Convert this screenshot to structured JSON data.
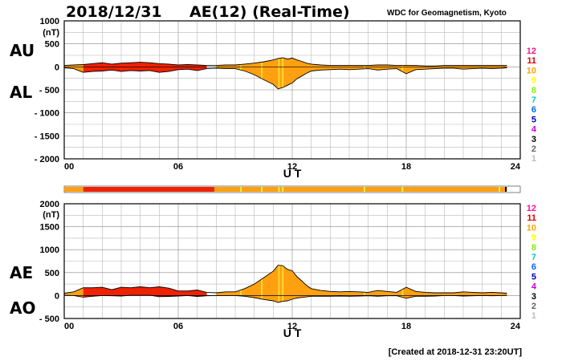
{
  "header": {
    "date": "2018/12/31",
    "title": "AE(12) (Real-Time)",
    "source": "WDC for Geomagnetism, Kyoto"
  },
  "footer": {
    "created": "[Created at 2018-12-31 23:20UT]"
  },
  "panel_labels": {
    "au": "AU",
    "al": "AL",
    "ae": "AE",
    "ao": "AO"
  },
  "station_count_legend": {
    "labels": [
      "12",
      "11",
      "10",
      "9",
      "8",
      "7",
      "6",
      "5",
      "4",
      "3",
      "2",
      "1"
    ],
    "colors": [
      "#ff1493",
      "#dd0000",
      "#ffa500",
      "#ffff00",
      "#88ee00",
      "#00cccc",
      "#0066ff",
      "#0000aa",
      "#cc00cc",
      "#000000",
      "#666666",
      "#bbbbbb"
    ]
  },
  "colors": {
    "station_11": "#ee2200",
    "station_10": "#ffa010",
    "station_9": "#ffee40",
    "frame": "#000000",
    "grid": "#aaaaaa"
  },
  "chart_data": [
    {
      "type": "area",
      "name": "AU / AL",
      "xlabel": "U T",
      "ylabel_unit": "(nT)",
      "xlim": [
        0,
        24
      ],
      "ylim": [
        -2000,
        1000
      ],
      "x_ticks": [
        "00",
        "06",
        "12",
        "18",
        "24"
      ],
      "y_ticks": [
        "1000",
        "500",
        "0",
        "- 500",
        "- 1000",
        "- 1500",
        "- 2000"
      ],
      "x": [
        0,
        0.5,
        1,
        1.5,
        2,
        2.5,
        3,
        3.5,
        4,
        4.5,
        5,
        5.5,
        6,
        6.5,
        7,
        7.5,
        8,
        8.5,
        9,
        9.5,
        10,
        10.5,
        11,
        11.25,
        11.5,
        11.75,
        12,
        12.25,
        12.5,
        12.75,
        13,
        13.5,
        14,
        14.5,
        15,
        15.5,
        16,
        16.5,
        17,
        17.5,
        18,
        18.5,
        19,
        19.5,
        20,
        20.5,
        21,
        21.5,
        22,
        22.5,
        23,
        23.3
      ],
      "series": [
        {
          "name": "AU",
          "values": [
            30,
            40,
            50,
            70,
            90,
            60,
            80,
            90,
            100,
            90,
            70,
            60,
            40,
            50,
            40,
            30,
            30,
            40,
            40,
            60,
            80,
            110,
            150,
            180,
            200,
            170,
            190,
            150,
            120,
            80,
            60,
            40,
            30,
            30,
            30,
            30,
            30,
            40,
            40,
            30,
            30,
            30,
            20,
            20,
            30,
            30,
            30,
            30,
            30,
            30,
            30,
            30
          ]
        },
        {
          "name": "AL",
          "values": [
            -20,
            -40,
            -120,
            -100,
            -90,
            -70,
            -100,
            -80,
            -90,
            -80,
            -120,
            -100,
            -60,
            -50,
            -80,
            -40,
            -30,
            -40,
            -40,
            -90,
            -170,
            -280,
            -380,
            -480,
            -450,
            -400,
            -350,
            -260,
            -200,
            -140,
            -90,
            -70,
            -60,
            -50,
            -60,
            -50,
            -40,
            -70,
            -50,
            -40,
            -150,
            -60,
            -50,
            -40,
            -30,
            -30,
            -50,
            -40,
            -30,
            -40,
            -30,
            -20
          ]
        }
      ],
      "station_segments": [
        {
          "start": 0,
          "end": 1,
          "stations": 10
        },
        {
          "start": 1,
          "end": 7.9,
          "stations": 11
        },
        {
          "start": 7.9,
          "end": 23.3,
          "stations": 10
        }
      ]
    },
    {
      "type": "area",
      "name": "AE / AO",
      "xlabel": "U T",
      "ylabel_unit": "(nT)",
      "xlim": [
        0,
        24
      ],
      "ylim": [
        -500,
        2000
      ],
      "x_ticks": [
        "00",
        "06",
        "12",
        "18",
        "24"
      ],
      "y_ticks": [
        "2000",
        "1500",
        "1000",
        "500",
        "0",
        "- 500"
      ],
      "x": [
        0,
        0.5,
        1,
        1.5,
        2,
        2.5,
        3,
        3.5,
        4,
        4.5,
        5,
        5.5,
        6,
        6.5,
        7,
        7.5,
        8,
        8.5,
        9,
        9.5,
        10,
        10.5,
        11,
        11.25,
        11.5,
        11.75,
        12,
        12.25,
        12.5,
        12.75,
        13,
        13.5,
        14,
        14.5,
        15,
        15.5,
        16,
        16.5,
        17,
        17.5,
        18,
        18.5,
        19,
        19.5,
        20,
        20.5,
        21,
        21.5,
        22,
        22.5,
        23,
        23.3
      ],
      "series": [
        {
          "name": "AE",
          "values": [
            50,
            80,
            170,
            170,
            180,
            130,
            180,
            170,
            190,
            170,
            190,
            160,
            100,
            100,
            120,
            70,
            60,
            80,
            80,
            150,
            250,
            390,
            530,
            660,
            650,
            570,
            540,
            410,
            320,
            220,
            150,
            110,
            90,
            80,
            90,
            80,
            70,
            110,
            90,
            70,
            180,
            90,
            70,
            60,
            60,
            60,
            80,
            70,
            60,
            70,
            60,
            50
          ]
        },
        {
          "name": "AO",
          "values": [
            5,
            0,
            -35,
            -15,
            0,
            -5,
            -10,
            5,
            5,
            5,
            -25,
            -20,
            -10,
            0,
            -20,
            -5,
            0,
            0,
            0,
            -15,
            -45,
            -85,
            -115,
            -150,
            -125,
            -115,
            -80,
            -55,
            -40,
            -30,
            -15,
            -15,
            -15,
            -10,
            -15,
            -10,
            -5,
            -15,
            -5,
            -5,
            -60,
            -15,
            -15,
            -10,
            0,
            0,
            -10,
            -5,
            0,
            -5,
            0,
            5
          ]
        }
      ],
      "station_segments": [
        {
          "start": 0,
          "end": 1,
          "stations": 10
        },
        {
          "start": 1,
          "end": 7.9,
          "stations": 11
        },
        {
          "start": 7.9,
          "end": 23.3,
          "stations": 10
        }
      ]
    }
  ],
  "station_bar": [
    {
      "start": 0,
      "end": 1,
      "stations": 10
    },
    {
      "start": 1,
      "end": 7.9,
      "stations": 11
    },
    {
      "start": 7.9,
      "end": 22.5,
      "stations": 10
    },
    {
      "start": 22.5,
      "end": 23.3,
      "stations": 10
    }
  ],
  "station_bar_markers": [
    9.3,
    10.4,
    11.3,
    11.5,
    15.8,
    17.8,
    22.9
  ]
}
